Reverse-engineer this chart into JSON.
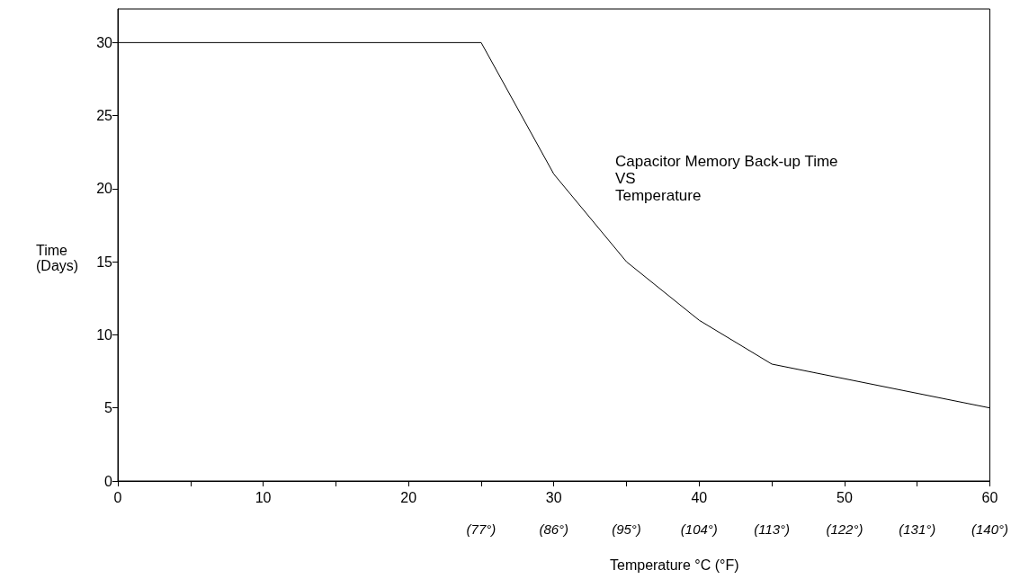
{
  "chart_data": {
    "type": "line",
    "xlabel": "Temperature °C (°F)",
    "ylabel": "Time\n(Days)",
    "annotations": [
      "Capacitor Memory Back-up Time\nVS\nTemperature"
    ],
    "x": [
      0,
      25,
      30,
      35,
      40,
      45,
      60
    ],
    "series": [
      {
        "color": "#000000",
        "values": [
          30,
          30,
          21,
          15,
          11,
          8,
          5
        ]
      }
    ],
    "xlim": [
      0,
      60
    ],
    "xticks": [
      0,
      {
        "value": 5,
        "label": null
      },
      10,
      {
        "value": 15,
        "label": null
      },
      20,
      {
        "value": 25,
        "label": null
      },
      30,
      {
        "value": 35,
        "label": null
      },
      40,
      {
        "value": 45,
        "label": null
      },
      50,
      {
        "value": 55,
        "label": null
      },
      60
    ],
    "x2lim": [
      32,
      140
    ],
    "x2ticks": [
      {
        "value": 77,
        "label": "(77°)"
      },
      {
        "value": 86,
        "label": "(86°)"
      },
      {
        "value": 95,
        "label": "(95°)"
      },
      {
        "value": 104,
        "label": "(104°)"
      },
      {
        "value": 113,
        "label": "(113°)"
      },
      {
        "value": 122,
        "label": "(122°)"
      },
      {
        "value": 131,
        "label": "(131°)"
      },
      {
        "value": 140,
        "label": "(140°)"
      }
    ],
    "ylim": [
      0,
      32.3
    ],
    "yticks": [
      0,
      5,
      10,
      15,
      20,
      25,
      30
    ],
    "grid": false,
    "marker": "none",
    "line_style": "solid"
  }
}
